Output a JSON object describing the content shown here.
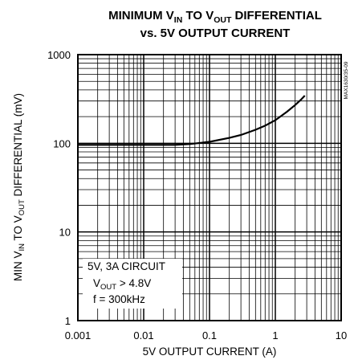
{
  "chart_data": {
    "type": "line",
    "title": {
      "line1": {
        "a": "MINIMUM V",
        "a_sub": "IN",
        "b": " TO V",
        "b_sub": "OUT",
        "c": " DIFFERENTIAL"
      },
      "line2": "vs. 5V OUTPUT CURRENT"
    },
    "xlabel": "5V OUTPUT CURRENT (A)",
    "ylabel": {
      "a": "MIN V",
      "a_sub": "IN",
      "b": " TO V",
      "b_sub": "OUT",
      "c": " DIFFERENTIAL (mV)"
    },
    "x_scale": "log",
    "y_scale": "log",
    "xlim": [
      0.001,
      10
    ],
    "ylim": [
      1,
      1000
    ],
    "x_ticks": [
      "0.001",
      "0.01",
      "0.1",
      "1",
      "10"
    ],
    "y_ticks": [
      "1",
      "10",
      "100",
      "1000"
    ],
    "grid": true,
    "figure_code": "MAX1630/35-09",
    "annotation": {
      "line1": "5V, 3A CIRCUIT",
      "line2": {
        "a": "V",
        "a_sub": "OUT",
        "b": " > 4.8V"
      },
      "line3": "f = 300kHz"
    },
    "series": [
      {
        "x": [
          0.001,
          0.003,
          0.01,
          0.03,
          0.05,
          0.1,
          0.2,
          0.3,
          0.5,
          0.7,
          1.0,
          1.5,
          2.0,
          2.5,
          2.8
        ],
        "y": [
          96,
          96,
          96,
          96,
          98,
          104,
          115,
          124,
          142,
          158,
          182,
          227,
          270,
          315,
          345
        ]
      }
    ]
  }
}
